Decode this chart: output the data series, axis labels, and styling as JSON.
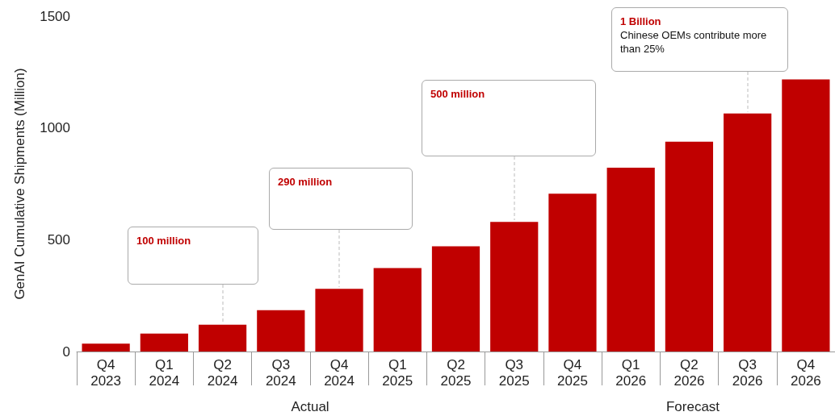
{
  "chart_data": {
    "type": "bar",
    "ylabel": "GenAI Cumulative Shipments (Million)",
    "categories": [
      "Q4\n2023",
      "Q1\n2024",
      "Q2\n2024",
      "Q3\n2024",
      "Q4\n2024",
      "Q1\n2025",
      "Q2\n2025",
      "Q3\n2025",
      "Q4\n2025",
      "Q1\n2026",
      "Q2\n2026",
      "Q3\n2026",
      "Q4\n2026"
    ],
    "values": [
      35,
      80,
      120,
      185,
      280,
      373,
      471,
      580,
      706,
      822,
      938,
      1065,
      1217
    ],
    "color": "#c00000",
    "ylim": [
      0,
      1500
    ],
    "yticks": [
      0,
      500,
      1000,
      1500
    ],
    "grid": false,
    "annotations": [
      "100 million",
      "290 million",
      "500 million",
      "1 Billion\nChinese OEMs contribute more than 25%",
      "Actual",
      "Forecast"
    ]
  }
}
